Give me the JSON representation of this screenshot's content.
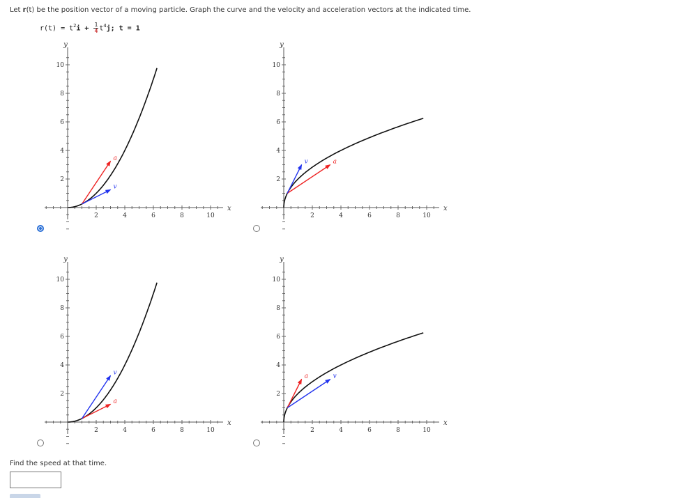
{
  "question": {
    "prefix": "Let ",
    "r_symbol": "r",
    "suffix": "(t) be the position vector of a moving particle. Graph the curve and the velocity and acceleration vectors at the indicated time."
  },
  "formula": {
    "lhs": "r(t) = t",
    "exp2": "2",
    "mid": "i + ",
    "num": "1",
    "den": "4",
    "t": "t",
    "exp4": "4",
    "rhs": "j;  t = 1"
  },
  "axis_labels": {
    "x": "x",
    "y": "y"
  },
  "x_ticks": [
    "2",
    "4",
    "6",
    "8",
    "10"
  ],
  "y_ticks": [
    "2",
    "4",
    "6",
    "8",
    "10"
  ],
  "vector_labels": {
    "velocity": "v",
    "acceleration": "a"
  },
  "colors": {
    "curve": "#111111",
    "velocity": "#2233ee",
    "acceleration": "#ee2222",
    "radio_selected": "#2a6fd6"
  },
  "options": [
    {
      "id": "A",
      "curve": "x = t^2, y = t^4/4",
      "selected": true,
      "velocity": [
        2,
        1
      ],
      "acceleration": [
        2,
        3
      ]
    },
    {
      "id": "B",
      "curve": "x = t^4/4, y = t^2",
      "selected": false,
      "velocity": [
        1,
        2
      ],
      "acceleration": [
        3,
        2
      ]
    },
    {
      "id": "C",
      "curve": "x = t^2, y = t^4/4",
      "selected": false,
      "velocity": [
        2,
        3
      ],
      "acceleration": [
        2,
        1
      ]
    },
    {
      "id": "D",
      "curve": "x = t^4/4, y = t^2",
      "selected": false,
      "velocity": [
        3,
        2
      ],
      "acceleration": [
        1,
        2
      ]
    }
  ],
  "speed_prompt": "Find the speed at that time.",
  "speed_answer": ""
}
